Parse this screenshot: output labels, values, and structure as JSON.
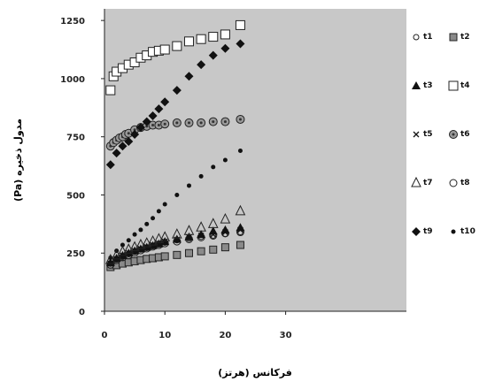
{
  "chart_data": {
    "type": "scatter",
    "xlabel": "فرکانس (هرتز)",
    "ylabel": "مدول ذخیره (Pa)",
    "xlim": [
      0,
      50
    ],
    "ylim": [
      0,
      1300
    ],
    "x_ticks": [
      {
        "value": 0,
        "label": "0"
      },
      {
        "value": 10,
        "label": "10"
      },
      {
        "value": 20,
        "label": "20"
      },
      {
        "value": 30,
        "label": "30"
      }
    ],
    "y_ticks": [
      {
        "value": 0,
        "label": "0"
      },
      {
        "value": 250,
        "label": "250"
      },
      {
        "value": 500,
        "label": "500"
      },
      {
        "value": 750,
        "label": "750"
      },
      {
        "value": 1000,
        "label": "1000"
      },
      {
        "value": 1250,
        "label": "1250"
      }
    ],
    "grid": false,
    "background": "#c8c8c8",
    "legend_position": "right",
    "series": [
      {
        "name": "t1",
        "marker": "circle-open-small",
        "x": [
          1,
          2,
          3,
          4,
          5,
          6,
          7,
          8,
          9,
          10,
          12,
          14,
          16,
          18,
          20,
          22.5
        ],
        "y": [
          205,
          222,
          235,
          245,
          255,
          265,
          272,
          280,
          288,
          295,
          305,
          312,
          320,
          325,
          332,
          340
        ]
      },
      {
        "name": "t2",
        "marker": "square-hatched",
        "x": [
          1,
          2,
          3,
          4,
          5,
          6,
          7,
          8,
          9,
          10,
          12,
          14,
          16,
          18,
          20,
          22.5
        ],
        "y": [
          190,
          198,
          205,
          210,
          215,
          220,
          225,
          228,
          232,
          236,
          242,
          250,
          258,
          265,
          275,
          285
        ]
      },
      {
        "name": "t3",
        "marker": "triangle-filled",
        "x": [
          1,
          2,
          3,
          4,
          5,
          6,
          7,
          8,
          9,
          10,
          12,
          14,
          16,
          18,
          20,
          22.5
        ],
        "y": [
          210,
          228,
          240,
          250,
          260,
          268,
          275,
          282,
          290,
          300,
          310,
          320,
          330,
          345,
          350,
          360
        ]
      },
      {
        "name": "t4",
        "marker": "square-open",
        "x": [
          1,
          1.5,
          2,
          3,
          4,
          5,
          6,
          7,
          8,
          9,
          10,
          12,
          14,
          16,
          18,
          20,
          22.5
        ],
        "y": [
          950,
          1010,
          1030,
          1045,
          1060,
          1070,
          1090,
          1100,
          1115,
          1120,
          1125,
          1140,
          1160,
          1170,
          1180,
          1190,
          1230
        ]
      },
      {
        "name": "t5",
        "marker": "x",
        "x": [
          1,
          2,
          3,
          4,
          5,
          6,
          7,
          8,
          9,
          10,
          12,
          14,
          16,
          18,
          20,
          22.5
        ],
        "y": [
          205,
          225,
          240,
          250,
          260,
          268,
          276,
          285,
          292,
          300,
          308,
          318,
          325,
          330,
          340,
          350
        ]
      },
      {
        "name": "t6",
        "marker": "circle-target",
        "x": [
          1,
          1.5,
          2,
          2.5,
          3,
          3.5,
          4,
          5,
          6,
          7,
          8,
          9,
          10,
          12,
          14,
          16,
          18,
          20,
          22.5
        ],
        "y": [
          710,
          725,
          735,
          745,
          750,
          760,
          765,
          780,
          790,
          795,
          800,
          800,
          805,
          810,
          810,
          810,
          815,
          815,
          825
        ]
      },
      {
        "name": "t7",
        "marker": "triangle-open",
        "x": [
          1,
          2,
          3,
          4,
          5,
          6,
          7,
          8,
          9,
          10,
          12,
          14,
          16,
          18,
          20,
          22.5
        ],
        "y": [
          220,
          240,
          255,
          265,
          275,
          285,
          292,
          300,
          310,
          318,
          330,
          345,
          360,
          375,
          395,
          430
        ]
      },
      {
        "name": "t8",
        "marker": "circle-open",
        "x": [
          1,
          2,
          3,
          4,
          5,
          6,
          7,
          8,
          9,
          10,
          12,
          14,
          16,
          18,
          20,
          22.5
        ],
        "y": [
          200,
          220,
          232,
          242,
          252,
          262,
          270,
          278,
          285,
          292,
          300,
          310,
          318,
          325,
          335,
          340
        ]
      },
      {
        "name": "t9",
        "marker": "diamond-filled",
        "x": [
          1,
          2,
          3,
          4,
          5,
          6,
          7,
          8,
          9,
          10,
          12,
          14,
          16,
          18,
          20,
          22.5
        ],
        "y": [
          630,
          680,
          710,
          730,
          760,
          790,
          815,
          840,
          870,
          900,
          950,
          1010,
          1060,
          1100,
          1130,
          1150
        ]
      },
      {
        "name": "t10",
        "marker": "dot-filled",
        "x": [
          1,
          2,
          3,
          4,
          5,
          6,
          7,
          8,
          9,
          10,
          12,
          14,
          16,
          18,
          20,
          22.5
        ],
        "y": [
          230,
          260,
          285,
          305,
          330,
          350,
          375,
          400,
          430,
          460,
          500,
          540,
          580,
          620,
          650,
          690
        ]
      }
    ]
  }
}
